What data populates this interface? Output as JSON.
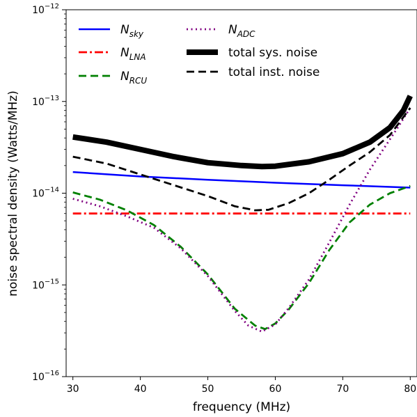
{
  "chart_data": {
    "type": "line",
    "xlabel": "frequency (MHz)",
    "ylabel": "noise spectral density (Watts/MHz)",
    "xlim": [
      29,
      81
    ],
    "ylim": [
      1e-16,
      1e-12
    ],
    "yscale": "log",
    "grid": false,
    "legend_placement": "top-left, two columns",
    "x_ticks": [
      30,
      40,
      50,
      60,
      70,
      80
    ],
    "x_tick_labels": [
      "30",
      "40",
      "50",
      "60",
      "70",
      "80"
    ],
    "y_ticks": [
      1e-16,
      1e-15,
      1e-14,
      1e-13,
      1e-12
    ],
    "y_tick_labels": [
      {
        "base": "10",
        "exp": "−16"
      },
      {
        "base": "10",
        "exp": "−15"
      },
      {
        "base": "10",
        "exp": "−14"
      },
      {
        "base": "10",
        "exp": "−13"
      },
      {
        "base": "10",
        "exp": "−12"
      }
    ],
    "series": [
      {
        "name": "N",
        "subscript": "sky",
        "color": "#0000ff",
        "style": "solid",
        "x": [
          30,
          40,
          50,
          60,
          70,
          80
        ],
        "y": [
          1.7e-14,
          1.52e-14,
          1.4e-14,
          1.3e-14,
          1.22e-14,
          1.15e-14
        ]
      },
      {
        "name": "N",
        "subscript": "LNA",
        "color": "#ff0000",
        "style": "dashdot",
        "x": [
          30,
          80
        ],
        "y": [
          6e-15,
          6e-15
        ]
      },
      {
        "name": "N",
        "subscript": "RCU",
        "color": "#008000",
        "style": "dashed",
        "x": [
          30,
          34,
          38,
          42,
          46,
          50,
          54,
          57,
          58.5,
          60,
          62,
          65,
          68,
          71,
          74,
          77,
          80
        ],
        "y": [
          1.02e-14,
          8.5e-15,
          6.5e-15,
          4.5e-15,
          2.6e-15,
          1.3e-15,
          5.5e-16,
          3.6e-16,
          3.3e-16,
          3.8e-16,
          5.4e-16,
          1.05e-15,
          2.4e-15,
          4.8e-15,
          7.5e-15,
          1e-14,
          1.2e-14
        ]
      },
      {
        "name": "N",
        "subscript": "ADC",
        "color": "#800080",
        "style": "dotted",
        "x": [
          30,
          34,
          38,
          42,
          46,
          50,
          54,
          56,
          58,
          60,
          62,
          65,
          68,
          71,
          74,
          76,
          78,
          80
        ],
        "y": [
          8.7e-15,
          7.2e-15,
          5.6e-15,
          4.2e-15,
          2.5e-15,
          1.25e-15,
          5.2e-16,
          3.6e-16,
          3.1e-16,
          3.7e-16,
          5.6e-16,
          1.15e-15,
          2.9e-15,
          7.5e-15,
          1.8e-14,
          3e-14,
          5e-14,
          8.5e-14
        ]
      },
      {
        "name": "total sys. noise",
        "subscript": "",
        "color": "#000000",
        "style": "thick",
        "x": [
          30,
          35,
          40,
          45,
          50,
          55,
          58,
          60,
          65,
          70,
          74,
          77,
          79,
          80
        ],
        "y": [
          4.1e-14,
          3.6e-14,
          3e-14,
          2.5e-14,
          2.15e-14,
          2e-14,
          1.95e-14,
          1.97e-14,
          2.2e-14,
          2.7e-14,
          3.6e-14,
          5.2e-14,
          8e-14,
          1.15e-13
        ]
      },
      {
        "name": "total inst. noise",
        "subscript": "",
        "color": "#000000",
        "style": "dashed",
        "x": [
          30,
          35,
          40,
          45,
          50,
          54,
          57,
          59,
          62,
          65,
          68,
          71,
          74,
          77,
          80
        ],
        "y": [
          2.5e-14,
          2.1e-14,
          1.6e-14,
          1.22e-14,
          9.3e-15,
          7.2e-15,
          6.5e-15,
          6.6e-15,
          7.8e-15,
          1e-14,
          1.4e-14,
          2e-14,
          2.8e-14,
          4.3e-14,
          8.5e-14
        ]
      }
    ]
  }
}
